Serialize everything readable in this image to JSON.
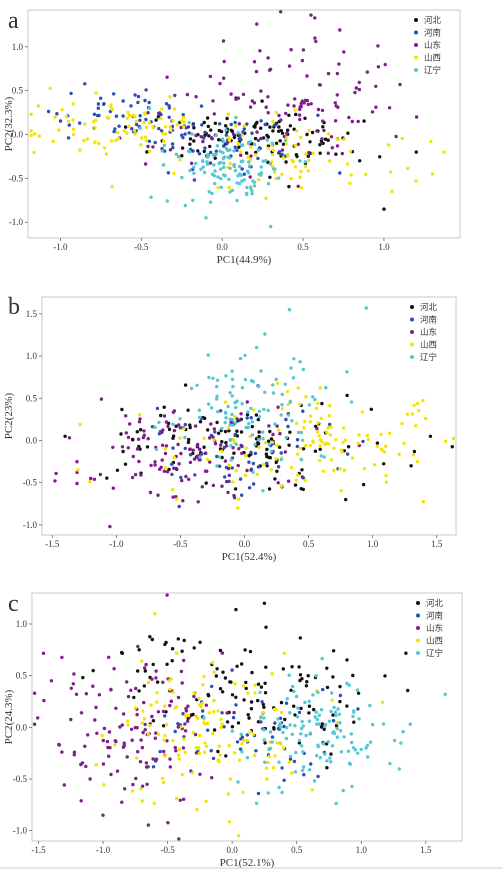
{
  "figure": {
    "palette": {
      "河北": "#111111",
      "河南": "#2a4fb5",
      "山东": "#7e1f8c",
      "山西": "#f5e400",
      "辽宁": "#55c7d3"
    },
    "legend_placement": "top-right"
  },
  "chart_data": [
    {
      "type": "scatter",
      "panel_label": "a",
      "title": "",
      "xlabel": "PC1(44.9%)",
      "ylabel": "PC2(32.3%)",
      "xlim": [
        -1.2,
        1.47
      ],
      "ylim": [
        -1.18,
        1.42
      ],
      "xticks": [
        -1.0,
        -0.5,
        0.0,
        0.5,
        1.0
      ],
      "xtick_labels": [
        "-1.0",
        "-0.5",
        "0.0",
        "0.5",
        "1.0"
      ],
      "yticks": [
        1.0,
        0.5,
        0.0,
        -0.5,
        -1.0
      ],
      "ytick_labels": [
        "1.0",
        "0.5",
        "0.0",
        "-0.5",
        "-1.0"
      ],
      "grid": false,
      "legend": [
        "河北",
        "河南",
        "山东",
        "山西",
        "辽宁"
      ],
      "series": [
        {
          "name": "河北",
          "color": "#111111",
          "clusters": [
            {
              "mx": 0.15,
              "my": -0.05,
              "sx": 0.28,
              "sy": 0.15,
              "n": 120
            }
          ],
          "extra": [
            [
              1.0,
              -0.85
            ],
            [
              1.2,
              -0.2
            ],
            [
              0.85,
              -0.3
            ]
          ]
        },
        {
          "name": "河南",
          "color": "#2a4fb5",
          "clusters": [
            {
              "mx": -0.55,
              "my": 0.22,
              "sx": 0.28,
              "sy": 0.14,
              "n": 60
            },
            {
              "mx": 0.05,
              "my": -0.08,
              "sx": 0.28,
              "sy": 0.16,
              "n": 60
            }
          ]
        },
        {
          "name": "山东",
          "color": "#7e1f8c",
          "clusters": [
            {
              "mx": 0.45,
              "my": 0.42,
              "sx": 0.3,
              "sy": 0.4,
              "n": 110
            },
            {
              "mx": -0.1,
              "my": -0.05,
              "sx": 0.25,
              "sy": 0.15,
              "n": 20
            }
          ]
        },
        {
          "name": "山西",
          "color": "#f5e400",
          "clusters": [
            {
              "mx": -0.55,
              "my": 0.05,
              "sx": 0.32,
              "sy": 0.15,
              "n": 80
            },
            {
              "mx": 0.35,
              "my": -0.25,
              "sx": 0.38,
              "sy": 0.22,
              "n": 70
            }
          ],
          "extra": [
            [
              1.3,
              -0.45
            ],
            [
              1.37,
              -0.2
            ],
            [
              1.05,
              -0.65
            ]
          ]
        },
        {
          "name": "辽宁",
          "color": "#55c7d3",
          "clusters": [
            {
              "mx": 0.02,
              "my": -0.35,
              "sx": 0.2,
              "sy": 0.2,
              "n": 120
            }
          ],
          "extra": [
            [
              0.3,
              -1.05
            ],
            [
              -0.1,
              -0.95
            ]
          ]
        }
      ]
    },
    {
      "type": "scatter",
      "panel_label": "b",
      "title": "",
      "xlabel": "PC1(52.4%)",
      "ylabel": "PC2(23%)",
      "xlim": [
        -1.58,
        1.65
      ],
      "ylim": [
        -1.12,
        1.7
      ],
      "xticks": [
        -1.5,
        -1.0,
        -0.5,
        0.0,
        0.5,
        1.0,
        1.5
      ],
      "xtick_labels": [
        "-1.5",
        "-1.0",
        "-0.5",
        "0.0",
        "0.5",
        "1.0",
        "1.5"
      ],
      "yticks": [
        1.5,
        1.0,
        0.5,
        0.0,
        -0.5,
        -1.0
      ],
      "ytick_labels": [
        "1.5",
        "1.0",
        "0.5",
        "0.0",
        "-0.5",
        "-1.0"
      ],
      "grid": false,
      "legend": [
        "河北",
        "河南",
        "山东",
        "山西",
        "辽宁"
      ],
      "series": [
        {
          "name": "河北",
          "color": "#111111",
          "clusters": [
            {
              "mx": 0.1,
              "my": 0.0,
              "sx": 0.6,
              "sy": 0.28,
              "n": 120
            }
          ],
          "extra": [
            [
              -1.4,
              0.05
            ],
            [
              1.45,
              0.05
            ],
            [
              1.3,
              -0.3
            ]
          ]
        },
        {
          "name": "河南",
          "color": "#2a4fb5",
          "clusters": [
            {
              "mx": -0.05,
              "my": -0.12,
              "sx": 0.4,
              "sy": 0.3,
              "n": 60
            }
          ]
        },
        {
          "name": "山东",
          "color": "#7e1f8c",
          "clusters": [
            {
              "mx": -0.45,
              "my": -0.15,
              "sx": 0.45,
              "sy": 0.3,
              "n": 130
            }
          ],
          "extra": [
            [
              -1.05,
              -1.02
            ],
            [
              -1.2,
              -0.45
            ]
          ]
        },
        {
          "name": "山西",
          "color": "#f5e400",
          "clusters": [
            {
              "mx": 0.45,
              "my": -0.05,
              "sx": 0.5,
              "sy": 0.28,
              "n": 130
            }
          ],
          "extra": [
            [
              1.35,
              -0.25
            ],
            [
              -1.3,
              -0.35
            ]
          ]
        },
        {
          "name": "辽宁",
          "color": "#55c7d3",
          "clusters": [
            {
              "mx": 0.08,
              "my": 0.35,
              "sx": 0.28,
              "sy": 0.35,
              "n": 110
            }
          ],
          "extra": [
            [
              0.35,
              1.55
            ],
            [
              0.95,
              1.57
            ]
          ]
        }
      ]
    },
    {
      "type": "scatter",
      "panel_label": "c",
      "title": "",
      "xlabel": "PC1(52.1%)",
      "ylabel": "PC2(24.3%)",
      "xlim": [
        -1.55,
        1.78
      ],
      "ylim": [
        -1.1,
        1.3
      ],
      "xticks": [
        -1.5,
        -1.0,
        -0.5,
        0.0,
        0.5,
        1.0,
        1.5
      ],
      "xtick_labels": [
        "-1.5",
        "-1.0",
        "-0.5",
        "0.0",
        "0.5",
        "1.0",
        "1.5"
      ],
      "yticks": [
        1.0,
        0.5,
        0.0,
        -0.5,
        -1.0
      ],
      "ytick_labels": [
        "1.0",
        "0.5",
        "0.0",
        "-0.5",
        "-1.0"
      ],
      "grid": false,
      "legend": [
        "河北",
        "河南",
        "山东",
        "山西",
        "辽宁"
      ],
      "series": [
        {
          "name": "河北",
          "color": "#111111",
          "clusters": [
            {
              "mx": 0.3,
              "my": 0.35,
              "sx": 0.35,
              "sy": 0.3,
              "n": 100
            },
            {
              "mx": -0.6,
              "my": 0.6,
              "sx": 0.25,
              "sy": 0.25,
              "n": 30
            }
          ],
          "extra": [
            [
              0.25,
              1.2
            ]
          ]
        },
        {
          "name": "河南",
          "color": "#2a4fb5",
          "clusters": [
            {
              "mx": 0.1,
              "my": -0.05,
              "sx": 0.4,
              "sy": 0.28,
              "n": 60
            }
          ]
        },
        {
          "name": "山东",
          "color": "#7e1f8c",
          "clusters": [
            {
              "mx": -0.75,
              "my": 0.0,
              "sx": 0.35,
              "sy": 0.38,
              "n": 140
            }
          ],
          "extra": [
            [
              -1.4,
              0.45
            ],
            [
              -1.0,
              -0.85
            ],
            [
              -1.1,
              -0.5
            ]
          ]
        },
        {
          "name": "山西",
          "color": "#f5e400",
          "clusters": [
            {
              "mx": -0.2,
              "my": 0.0,
              "sx": 0.4,
              "sy": 0.35,
              "n": 130
            }
          ],
          "extra": [
            [
              -0.6,
              1.1
            ],
            [
              0.05,
              -1.05
            ]
          ]
        },
        {
          "name": "辽宁",
          "color": "#55c7d3",
          "clusters": [
            {
              "mx": 0.62,
              "my": -0.05,
              "sx": 0.3,
              "sy": 0.28,
              "n": 130
            }
          ],
          "extra": [
            [
              1.65,
              0.32
            ],
            [
              1.38,
              0.03
            ]
          ]
        }
      ]
    }
  ]
}
